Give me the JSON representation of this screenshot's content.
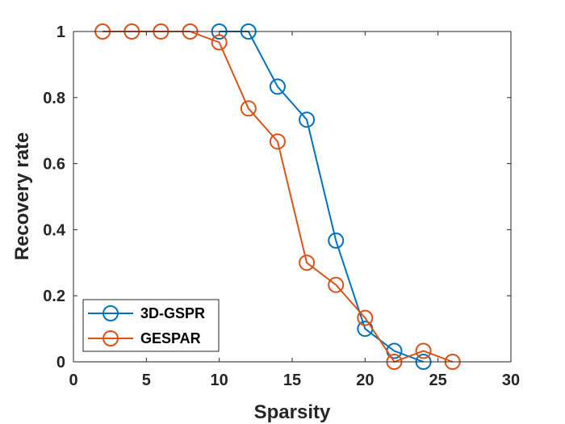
{
  "chart_data": {
    "type": "line",
    "title": "",
    "xlabel": "Sparsity",
    "ylabel": "Recovery rate",
    "xlim": [
      0,
      30
    ],
    "ylim": [
      0,
      1
    ],
    "xticks": [
      0,
      5,
      10,
      15,
      20,
      25,
      30
    ],
    "yticks": [
      0,
      0.2,
      0.4,
      0.6,
      0.8,
      1
    ],
    "xtick_labels": [
      "0",
      "5",
      "10",
      "15",
      "20",
      "25",
      "30"
    ],
    "ytick_labels": [
      "0",
      "0.2",
      "0.4",
      "0.6",
      "0.8",
      "1"
    ],
    "grid": false,
    "legend_position": "bottom-left",
    "series": [
      {
        "name": "3D-GSPR",
        "color": "#0072BD",
        "marker": "circle",
        "x": [
          10,
          12,
          14,
          16,
          18,
          20,
          22,
          24
        ],
        "y": [
          1.0,
          1.0,
          0.833,
          0.733,
          0.367,
          0.1,
          0.033,
          0.0
        ]
      },
      {
        "name": "GESPAR",
        "color": "#D95319",
        "marker": "circle",
        "x": [
          2,
          4,
          6,
          8,
          10,
          12,
          14,
          16,
          18,
          20,
          22,
          24,
          26
        ],
        "y": [
          1.0,
          1.0,
          1.0,
          1.0,
          0.967,
          0.767,
          0.667,
          0.3,
          0.233,
          0.133,
          0.0,
          0.033,
          0.0
        ]
      }
    ]
  }
}
